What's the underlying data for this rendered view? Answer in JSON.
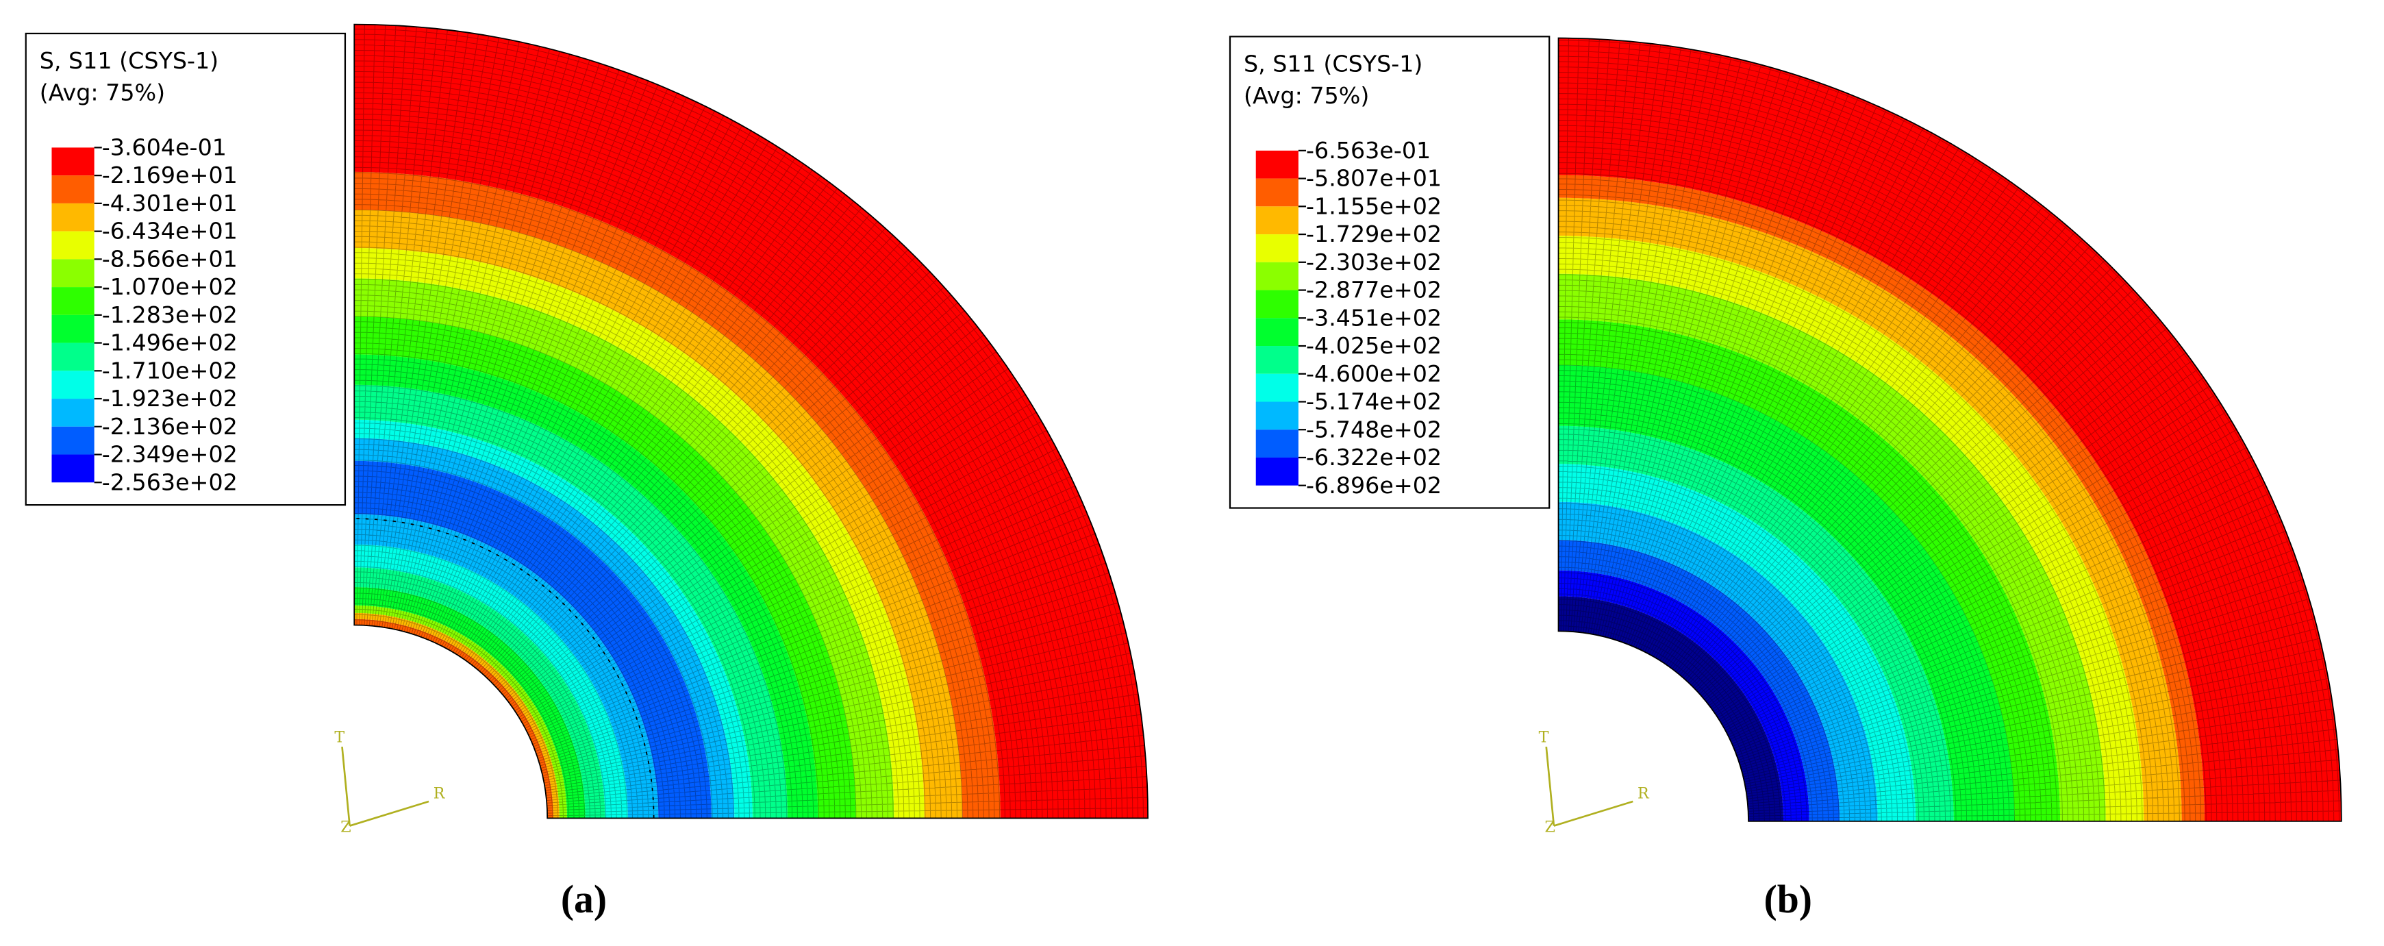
{
  "panels": [
    {
      "legend": {
        "title": [
          "S, S11 (CSYS-1)",
          "(Avg: 75%)"
        ],
        "labels": [
          "-3.604e-01",
          "-2.169e+01",
          "-4.301e+01",
          "-6.434e+01",
          "-8.566e+01",
          "-1.070e+02",
          "-1.283e+02",
          "-1.496e+02",
          "-1.710e+02",
          "-1.923e+02",
          "-2.136e+02",
          "-2.349e+02",
          "-2.563e+02"
        ]
      },
      "triad": {
        "t": "T",
        "r": "R",
        "z": "Z"
      },
      "caption": "(a)"
    },
    {
      "legend": {
        "title": [
          "S, S11 (CSYS-1)",
          "(Avg: 75%)"
        ],
        "labels": [
          "-6.563e-01",
          "-5.807e+01",
          "-1.155e+02",
          "-1.729e+02",
          "-2.303e+02",
          "-2.877e+02",
          "-3.451e+02",
          "-4.025e+02",
          "-4.600e+02",
          "-5.174e+02",
          "-5.748e+02",
          "-6.322e+02",
          "-6.896e+02"
        ]
      },
      "triad": {
        "t": "T",
        "r": "R",
        "z": "Z"
      },
      "caption": "(b)"
    }
  ]
}
